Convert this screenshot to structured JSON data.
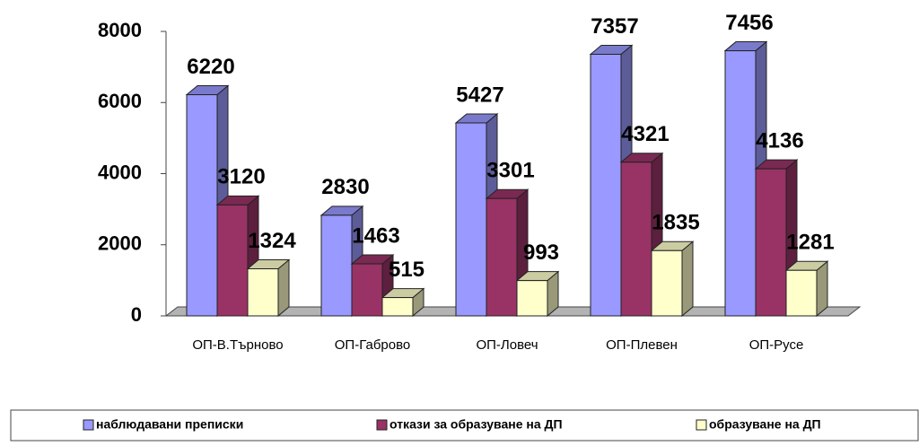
{
  "chart_data": {
    "type": "bar3d",
    "categories": [
      "ОП-В.Търново",
      "ОП-Габрово",
      "ОП-Ловеч",
      "ОП-Плевен",
      "ОП-Русе"
    ],
    "series": [
      {
        "name": "наблюдавани преписки",
        "color": "#9999ff",
        "values": [
          6220,
          2830,
          5427,
          7357,
          7456
        ]
      },
      {
        "name": "откази за образуване на ДП",
        "color": "#993366",
        "values": [
          3120,
          1463,
          3301,
          4321,
          4136
        ]
      },
      {
        "name": "образуване на ДП",
        "color": "#ffffcc",
        "values": [
          1324,
          515,
          993,
          1835,
          1281
        ]
      }
    ],
    "ylim": [
      0,
      8000
    ],
    "yticks": [
      0,
      2000,
      4000,
      6000,
      8000
    ],
    "legend": "bottom"
  }
}
